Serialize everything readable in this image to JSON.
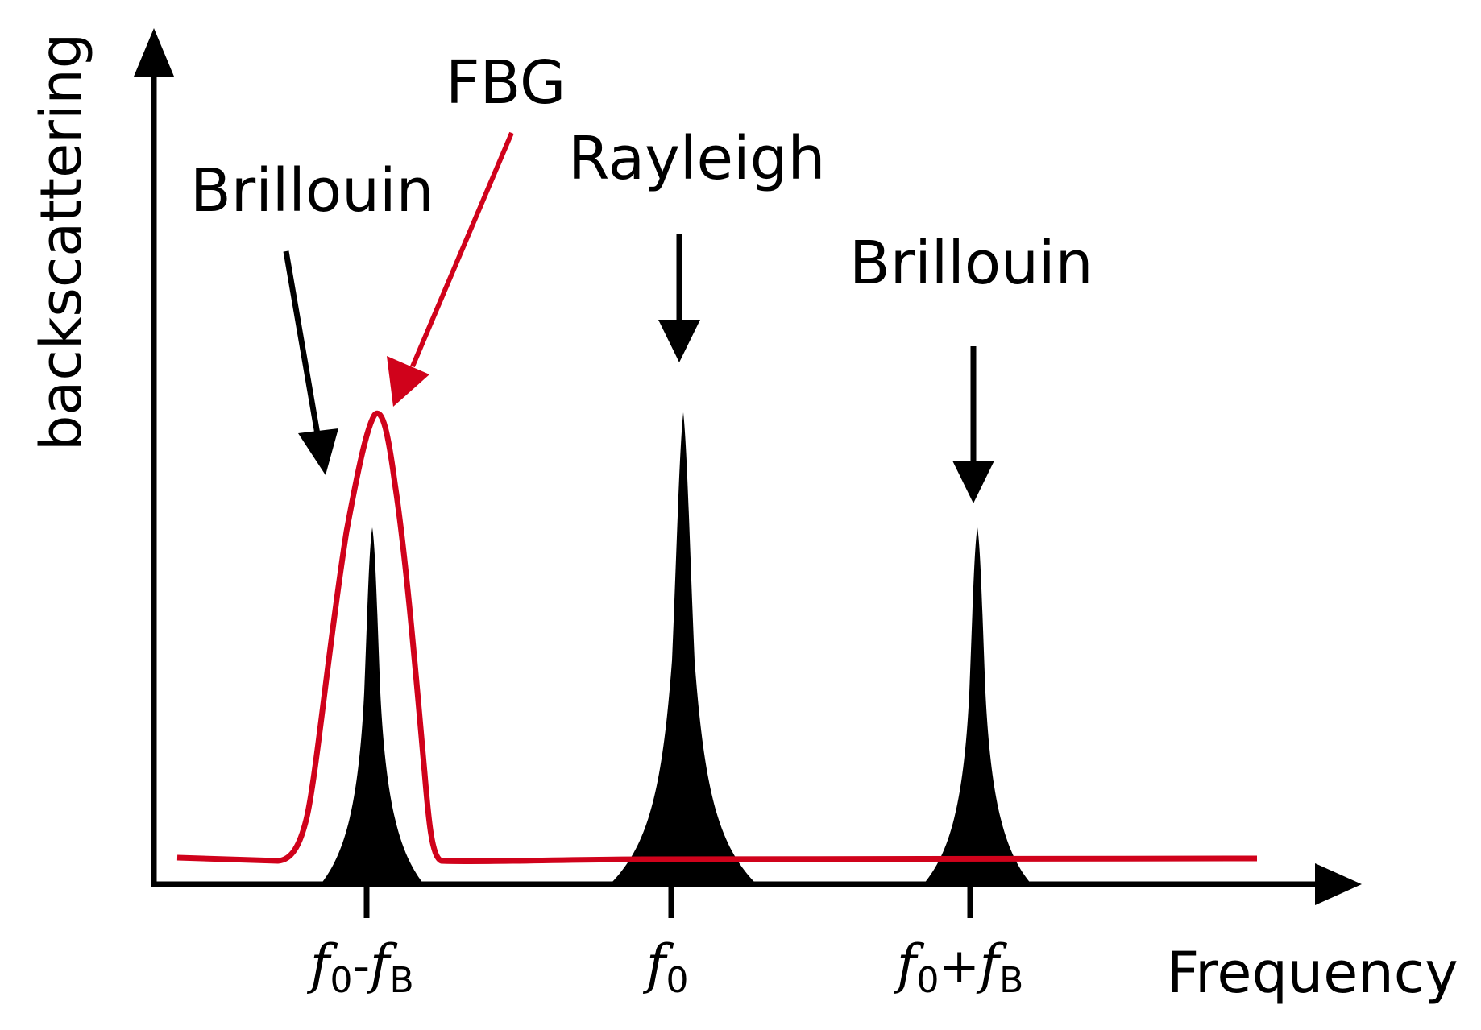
{
  "colors": {
    "axis": "#000000",
    "peaks": "#000000",
    "fbg_curve": "#d0021b",
    "background": "#ffffff"
  },
  "axes": {
    "x_title": "Frequency",
    "y_title": "backscattering"
  },
  "labels": {
    "brillouin_left": "Brillouin",
    "fbg": "FBG",
    "rayleigh": "Rayleigh",
    "brillouin_right": "Brillouin"
  },
  "ticks": [
    {
      "base": "f",
      "base_sub": "0",
      "op": "-",
      "term": "f",
      "term_sub": "B"
    },
    {
      "base": "f",
      "base_sub": "0",
      "op": "",
      "term": "",
      "term_sub": ""
    },
    {
      "base": "f",
      "base_sub": "0",
      "op": "+",
      "term": "f",
      "term_sub": "B"
    }
  ],
  "peaks": [
    {
      "name": "brillouin-stokes",
      "tick": 0,
      "relative_height": 0.58
    },
    {
      "name": "rayleigh",
      "tick": 1,
      "relative_height": 1.0
    },
    {
      "name": "brillouin-anti-stokes",
      "tick": 2,
      "relative_height": 0.58
    }
  ],
  "fbg": {
    "centered_on_tick": 0,
    "relative_height": 1.0
  }
}
